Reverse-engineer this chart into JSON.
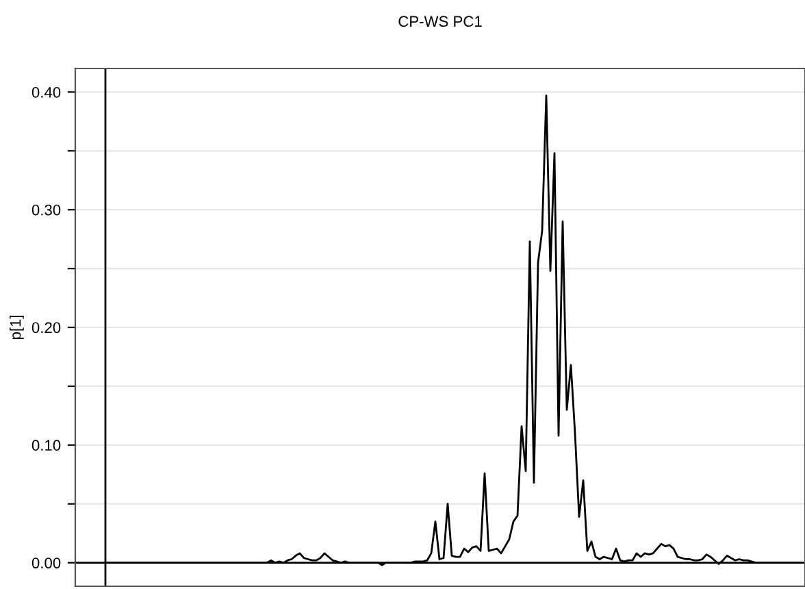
{
  "chart_data": {
    "type": "line",
    "title": "CP-WS PC1",
    "ylabel": "p[1]",
    "categories": [
      null,
      null,
      null,
      null,
      null,
      null,
      null,
      null,
      null,
      null,
      null,
      null,
      null,
      null,
      null,
      null,
      null,
      null,
      null,
      null,
      null,
      null,
      null,
      null,
      null,
      null,
      null,
      null,
      null,
      null,
      null,
      null,
      null,
      null,
      null,
      null,
      null,
      null,
      null,
      null,
      null,
      null,
      null,
      null,
      null,
      null,
      null,
      null,
      null,
      null,
      null,
      null,
      null,
      null,
      null,
      null,
      null,
      null,
      null,
      null,
      null,
      null,
      null,
      null,
      null,
      null,
      null,
      null,
      null,
      null,
      null,
      null,
      null,
      null,
      null,
      null,
      null,
      null,
      null,
      null,
      null,
      null,
      null,
      null,
      null,
      null,
      null,
      null,
      null,
      null,
      null,
      null,
      null,
      null,
      null,
      null,
      null,
      null,
      null,
      null,
      null,
      null,
      null,
      null,
      null,
      null,
      null,
      null,
      null,
      null,
      null,
      null,
      null,
      null,
      null,
      null,
      null,
      null,
      null,
      null,
      null,
      null,
      null,
      null,
      null,
      null,
      null,
      null,
      null,
      null,
      null,
      null,
      null,
      null,
      null,
      null,
      null,
      null,
      null,
      null,
      null,
      null,
      null,
      null,
      null,
      null,
      null,
      null,
      null,
      null,
      null,
      null,
      null,
      null,
      null,
      null,
      null,
      null,
      null,
      null,
      null,
      null,
      null,
      null,
      null,
      null,
      null,
      null,
      null,
      null
    ],
    "series": [
      {
        "color": "#000000",
        "values": [
          0,
          0,
          0,
          0,
          0,
          0,
          0,
          0,
          0,
          0,
          0,
          0,
          0,
          0,
          0,
          0,
          0,
          0,
          0,
          0,
          0,
          0,
          0,
          0,
          0,
          0,
          0,
          0,
          0,
          0,
          0,
          0,
          0,
          0,
          0,
          0,
          0,
          0,
          0,
          0,
          0.002,
          0,
          0.001,
          0,
          0.002,
          0.003,
          0.006,
          0.008,
          0.004,
          0.003,
          0.002,
          0.002,
          0.004,
          0.008,
          0.005,
          0.002,
          0.001,
          0,
          0.001,
          0,
          0,
          0,
          0,
          0,
          0,
          0,
          0,
          -0.002,
          0,
          0,
          0,
          0,
          0,
          0,
          0,
          0.001,
          0.001,
          0.001,
          0.002,
          0.008,
          0.035,
          0.003,
          0.004,
          0.05,
          0.006,
          0.005,
          0.005,
          0.012,
          0.009,
          0.013,
          0.014,
          0.01,
          0.076,
          0.01,
          0.011,
          0.012,
          0.008,
          0.014,
          0.02,
          0.035,
          0.04,
          0.116,
          0.078,
          0.273,
          0.068,
          0.255,
          0.282,
          0.397,
          0.248,
          0.348,
          0.108,
          0.29,
          0.13,
          0.168,
          0.11,
          0.039,
          0.07,
          0.01,
          0.018,
          0.005,
          0.003,
          0.005,
          0.004,
          0.003,
          0.012,
          0.002,
          0.001,
          0.002,
          0.002,
          0.008,
          0.005,
          0.008,
          0.007,
          0.008,
          0.012,
          0.016,
          0.014,
          0.015,
          0.012,
          0.005,
          0.004,
          0.003,
          0.003,
          0.002,
          0.002,
          0.003,
          0.007,
          0.005,
          0.002,
          -0.001,
          0.002,
          0.006,
          0.004,
          0.002,
          0.003,
          0.002,
          0.002,
          0.001,
          0,
          0,
          0,
          0,
          0,
          0,
          0,
          0,
          0,
          0,
          0,
          0
        ]
      }
    ],
    "ylim": [
      -0.02,
      0.42
    ],
    "yticks": [
      {
        "value": 0,
        "label": "0.00"
      },
      {
        "value": 0.05,
        "label": null
      },
      {
        "value": 0.1,
        "label": "0.10"
      },
      {
        "value": 0.15,
        "label": null
      },
      {
        "value": 0.2,
        "label": "0.20"
      },
      {
        "value": 0.25,
        "label": null
      },
      {
        "value": 0.3,
        "label": "0.30"
      },
      {
        "value": 0.35,
        "label": null
      },
      {
        "value": 0.4,
        "label": "0.40"
      }
    ],
    "grid": "y",
    "legend": false,
    "tick_labels": "y",
    "marker": "none",
    "line_style": "solid"
  }
}
